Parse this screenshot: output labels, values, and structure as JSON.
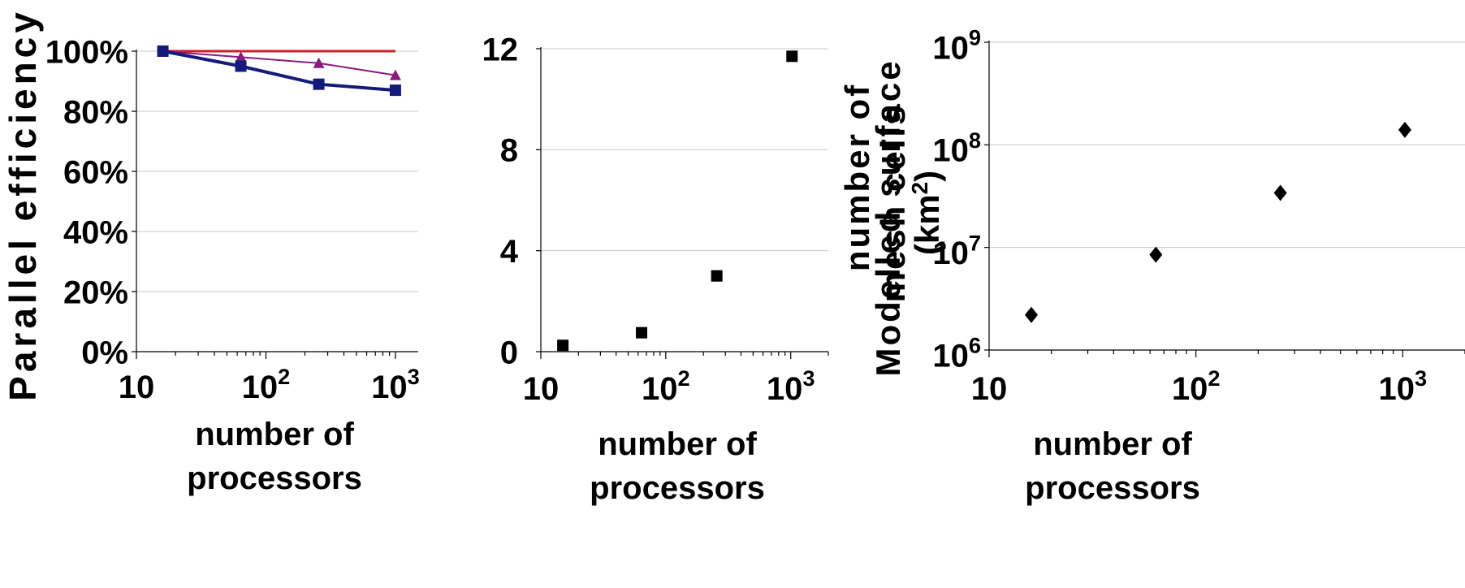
{
  "chart_data": [
    {
      "type": "line",
      "ylabel": "Parallel efficiency",
      "xlabel_line1": "number of",
      "xlabel_line2": "processors",
      "xscale": "log",
      "xlim": [
        10,
        1500
      ],
      "ylim": [
        0,
        100
      ],
      "grid": "horizontal",
      "yticks": [
        "0%",
        "20%",
        "40%",
        "60%",
        "80%",
        "100%"
      ],
      "ytick_values": [
        0,
        20,
        40,
        60,
        80,
        100
      ],
      "xtick_values": [
        10,
        100,
        1000
      ],
      "xticks": [
        {
          "base": "10",
          "exp": ""
        },
        {
          "base": "10",
          "exp": "2"
        },
        {
          "base": "10",
          "exp": "3"
        }
      ],
      "series": [
        {
          "x": [
            16,
            1000
          ],
          "values": [
            100,
            100
          ],
          "color": "#cc1f2b",
          "marker": "none",
          "width": 3
        },
        {
          "x": [
            16,
            64,
            256,
            1000
          ],
          "values": [
            100,
            98,
            96,
            92
          ],
          "color": "#8b1a7e",
          "marker": "triangle",
          "width": 2
        },
        {
          "x": [
            16,
            64,
            256,
            1000
          ],
          "values": [
            100,
            95,
            89,
            87
          ],
          "color": "#141a7a",
          "marker": "square",
          "width": 4
        }
      ]
    },
    {
      "type": "scatter",
      "ylabel_line1": "Modelled surface",
      "ylabel_line2": "(km",
      "ylabel_sup": "2",
      "ylabel_close": ")",
      "xlabel_line1": "number of",
      "xlabel_line2": "processors",
      "xscale": "log",
      "xlim": [
        10,
        2000
      ],
      "ylim": [
        0,
        12
      ],
      "grid": "horizontal",
      "yticks": [
        "0",
        "4",
        "8",
        "12"
      ],
      "ytick_values": [
        0,
        4,
        8,
        12
      ],
      "xtick_values": [
        10,
        100,
        1000
      ],
      "xticks": [
        {
          "base": "10",
          "exp": ""
        },
        {
          "base": "10",
          "exp": "2"
        },
        {
          "base": "10",
          "exp": "3"
        }
      ],
      "series": [
        {
          "x": [
            15,
            64,
            256,
            1024
          ],
          "values": [
            0.25,
            0.75,
            3.0,
            11.7
          ],
          "color": "#000000",
          "marker": "square"
        }
      ]
    },
    {
      "type": "scatter",
      "ylabel_line1": "number of",
      "ylabel_line2": "mesh cells",
      "xlabel_line1": "number of",
      "xlabel_line2": "processors",
      "xscale": "log",
      "yscale": "log",
      "xlim": [
        10,
        2000
      ],
      "ylim": [
        1000000,
        1000000000
      ],
      "grid": "horizontal",
      "ytick_values": [
        1000000,
        10000000,
        100000000,
        1000000000
      ],
      "yticks": [
        {
          "base": "10",
          "exp": "6"
        },
        {
          "base": "10",
          "exp": "7"
        },
        {
          "base": "10",
          "exp": "8"
        },
        {
          "base": "10",
          "exp": "9"
        }
      ],
      "xtick_values": [
        10,
        100,
        1000
      ],
      "xticks": [
        {
          "base": "10",
          "exp": ""
        },
        {
          "base": "10",
          "exp": "2"
        },
        {
          "base": "10",
          "exp": "3"
        }
      ],
      "series": [
        {
          "x": [
            16,
            64,
            256,
            1024
          ],
          "values": [
            2200000,
            8500000,
            34000000,
            140000000
          ],
          "color": "#000000",
          "marker": "diamond"
        }
      ]
    }
  ]
}
